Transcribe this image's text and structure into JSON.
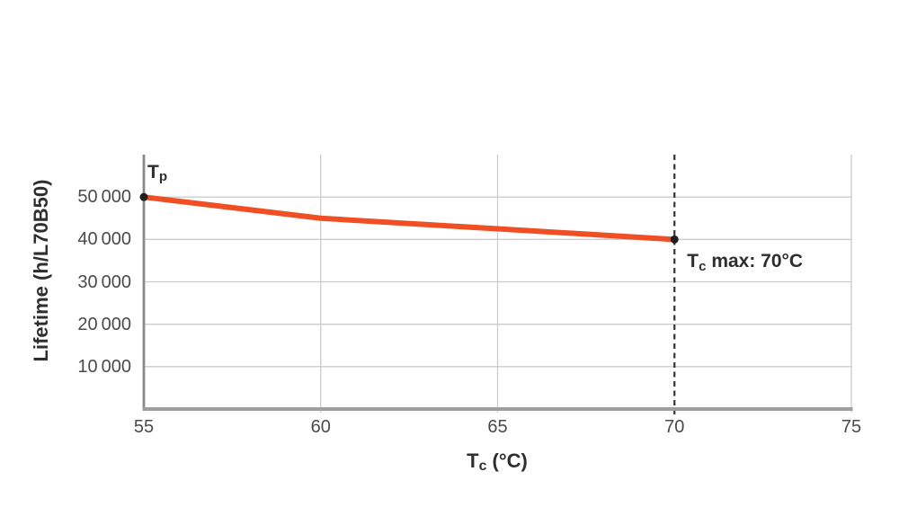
{
  "chart_data": {
    "type": "line",
    "title": "",
    "ylabel": "Lifetime (h/L70B50)",
    "xlabel": {
      "main": "T",
      "sub": "c",
      "rest": " (°C)"
    },
    "xlim": [
      55,
      75
    ],
    "ylim": [
      0,
      60000
    ],
    "grid": true,
    "x": [
      55,
      60,
      65,
      70
    ],
    "series": [
      {
        "name": "lifetime-vs-case-temperature",
        "values": [
          50000,
          45000,
          42500,
          40000
        ]
      }
    ],
    "xticks": [
      {
        "value": 55,
        "label": "55"
      },
      {
        "value": 60,
        "label": "60"
      },
      {
        "value": 65,
        "label": "65"
      },
      {
        "value": 70,
        "label": "70"
      },
      {
        "value": 75,
        "label": "75"
      }
    ],
    "yticks": [
      {
        "value": 10000,
        "label": "10 000"
      },
      {
        "value": 20000,
        "label": "20 000"
      },
      {
        "value": 30000,
        "label": "30 000"
      },
      {
        "value": 40000,
        "label": "40 000"
      },
      {
        "value": 50000,
        "label": "50 000"
      }
    ],
    "markers": [
      {
        "x": 55,
        "y": 50000
      },
      {
        "x": 70,
        "y": 40000
      }
    ],
    "start_label": {
      "main": "T",
      "sub": "p",
      "rest": ""
    },
    "reference_line": {
      "x": 70,
      "style": "dashed",
      "label": {
        "main": "T",
        "sub": "c",
        "rest": " max: 70°C"
      }
    },
    "colors": {
      "series": "#f04e23",
      "grid": "#cccccc",
      "axis_bottom": "#9e9e9e",
      "axis_left": "#8a8a8a",
      "marker": "#1f1f1f",
      "reference": "#333333",
      "tick_text": "#4a4a4a",
      "label_text": "#2e2e2e"
    }
  }
}
